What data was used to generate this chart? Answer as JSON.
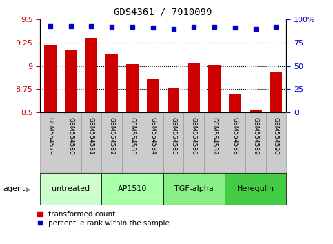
{
  "title": "GDS4361 / 7910099",
  "samples": [
    "GSM554579",
    "GSM554580",
    "GSM554581",
    "GSM554582",
    "GSM554583",
    "GSM554584",
    "GSM554585",
    "GSM554586",
    "GSM554587",
    "GSM554588",
    "GSM554589",
    "GSM554590"
  ],
  "bar_values": [
    9.22,
    9.17,
    9.3,
    9.12,
    9.02,
    8.86,
    8.76,
    9.03,
    9.01,
    8.7,
    8.53,
    8.93
  ],
  "percentile_values": [
    93,
    93,
    93,
    92,
    92,
    91,
    90,
    92,
    92,
    91,
    90,
    92
  ],
  "bar_color": "#cc0000",
  "dot_color": "#0000cc",
  "ylim_left": [
    8.5,
    9.5
  ],
  "ylim_right": [
    0,
    100
  ],
  "yticks_left": [
    8.5,
    8.75,
    9.0,
    9.25,
    9.5
  ],
  "ytick_labels_left": [
    "8.5",
    "8.75",
    "9",
    "9.25",
    "9.5"
  ],
  "yticks_right": [
    0,
    25,
    50,
    75,
    100
  ],
  "ytick_labels_right": [
    "0",
    "25",
    "50",
    "75",
    "100%"
  ],
  "grid_yticks": [
    8.75,
    9.0,
    9.25
  ],
  "groups": [
    {
      "label": "untreated",
      "start": 0,
      "end": 3,
      "color": "#ccffcc"
    },
    {
      "label": "AP1510",
      "start": 3,
      "end": 6,
      "color": "#aaffaa"
    },
    {
      "label": "TGF-alpha",
      "start": 6,
      "end": 9,
      "color": "#88ee88"
    },
    {
      "label": "Heregulin",
      "start": 9,
      "end": 12,
      "color": "#44cc44"
    }
  ],
  "agent_label": "agent",
  "arrow": "▶",
  "legend_bar_label": "transformed count",
  "legend_dot_label": "percentile rank within the sample",
  "background_color": "#ffffff",
  "tick_label_color_left": "#cc0000",
  "tick_label_color_right": "#0000cc",
  "bar_width": 0.6,
  "sample_bg_color": "#cccccc",
  "sample_border_color": "#999999"
}
